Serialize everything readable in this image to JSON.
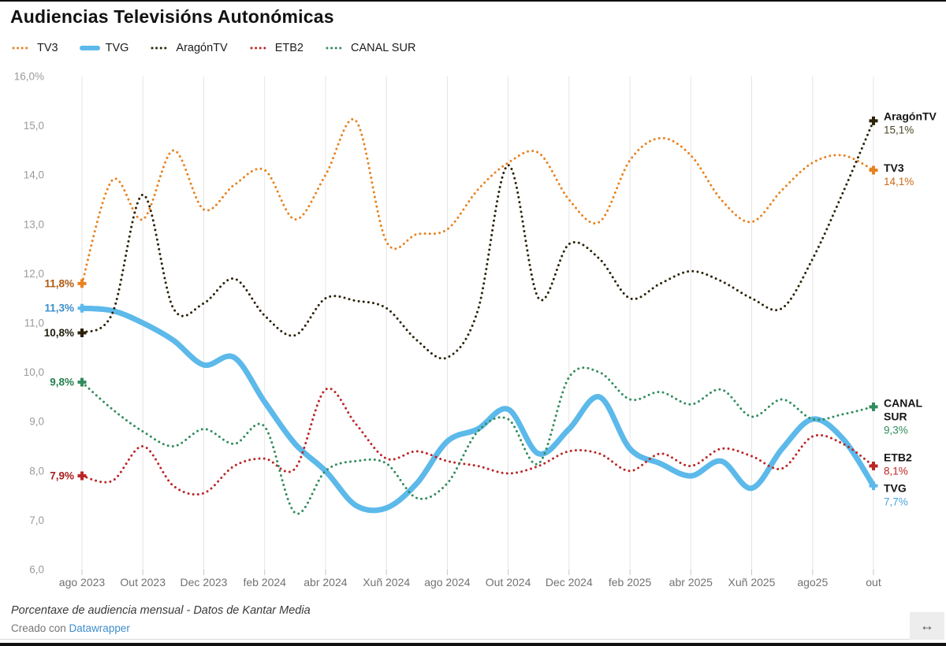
{
  "header": {
    "title": "Audiencias Televisións Autonómicas"
  },
  "chart_data": {
    "type": "line",
    "title": "Audiencias Televisións Autonómicas",
    "ylabel": "Porcentaxe de audiencia (%)",
    "y_min": 6,
    "y_max": 16,
    "grid": "vertical-only",
    "y_tick_labels": [
      "16,0%",
      "15,0",
      "14,0",
      "13,0",
      "12,0",
      "11,0",
      "10,0",
      "9,0",
      "8,0",
      "7,0",
      "6,0"
    ],
    "x_tick_labels": [
      "ago 2023",
      "Out 2023",
      "Dec 2023",
      "feb 2024",
      "abr 2024",
      "Xuñ 2024",
      "ago 2024",
      "Out 2024",
      "Dec 2024",
      "feb 2025",
      "abr 2025",
      "Xuñ 2025",
      "ago25",
      "out"
    ],
    "series": [
      {
        "name": "TV3",
        "style": "dotted",
        "color": "#e8821f",
        "start_label": "11,8%",
        "start_label_color": "#ad5a12",
        "end_label": "14,1%",
        "end_label_color": "#cf6a16",
        "end_name_lines": [
          "TV3"
        ],
        "values": [
          11.8,
          13.9,
          13.1,
          14.5,
          13.3,
          13.8,
          14.1,
          13.1,
          14.0,
          15.1,
          12.65,
          12.8,
          12.9,
          13.7,
          14.25,
          14.45,
          13.5,
          13.05,
          14.3,
          14.75,
          14.4,
          13.5,
          13.05,
          13.7,
          14.25,
          14.4,
          14.1
        ]
      },
      {
        "name": "TVG",
        "style": "solid",
        "color": "#5cb9ea",
        "start_label": "11,3%",
        "start_label_color": "#3a8fc9",
        "end_label": "7,7%",
        "end_label_color": "#49a5dc",
        "end_name_lines": [
          "TVG"
        ],
        "values": [
          11.3,
          11.25,
          11.0,
          10.65,
          10.15,
          10.3,
          9.4,
          8.55,
          8.0,
          7.3,
          7.25,
          7.75,
          8.6,
          8.85,
          9.25,
          8.35,
          8.85,
          9.5,
          8.45,
          8.15,
          7.9,
          8.2,
          7.65,
          8.45,
          9.05,
          8.65,
          7.7
        ]
      },
      {
        "name": "AragónTV",
        "style": "dotted",
        "color": "#2b2208",
        "start_label": "10,8%",
        "start_label_color": "#20200f",
        "end_label": "15,1%",
        "end_label_color": "#4d4527",
        "end_name_lines": [
          "AragónTV"
        ],
        "values": [
          10.8,
          11.2,
          13.6,
          11.3,
          11.4,
          11.9,
          11.15,
          10.75,
          11.5,
          11.45,
          11.3,
          10.65,
          10.3,
          11.25,
          14.2,
          11.5,
          12.6,
          12.3,
          11.5,
          11.8,
          12.05,
          11.85,
          11.5,
          11.3,
          12.3,
          13.65,
          15.1
        ]
      },
      {
        "name": "ETB2",
        "style": "dotted",
        "color": "#bb2626",
        "start_label": "7,9%",
        "start_label_color": "#ab1f1f",
        "end_label": "8,1%",
        "end_label_color": "#bb2626",
        "end_name_lines": [
          "ETB2"
        ],
        "values": [
          7.9,
          7.8,
          8.5,
          7.7,
          7.55,
          8.1,
          8.25,
          8.05,
          9.65,
          8.95,
          8.25,
          8.4,
          8.2,
          8.1,
          7.95,
          8.1,
          8.4,
          8.35,
          8.0,
          8.35,
          8.1,
          8.45,
          8.3,
          8.05,
          8.7,
          8.55,
          8.1
        ]
      },
      {
        "name": "CANAL SUR",
        "style": "dotted",
        "color": "#328c5c",
        "start_label": "9,8%",
        "start_label_color": "#258050",
        "end_label": "9,3%",
        "end_label_color": "#2e8d5a",
        "end_name_lines": [
          "CANAL",
          "SUR"
        ],
        "values": [
          9.8,
          9.25,
          8.8,
          8.5,
          8.85,
          8.55,
          8.9,
          7.15,
          8.0,
          8.2,
          8.15,
          7.45,
          7.75,
          8.8,
          9.05,
          8.15,
          9.9,
          10.0,
          9.45,
          9.6,
          9.35,
          9.65,
          9.1,
          9.45,
          9.05,
          9.15,
          9.3
        ]
      }
    ]
  },
  "footer": {
    "note": "Porcentaxe de audiencia mensual - Datos de Kantar Media",
    "credit_prefix": "Creado con ",
    "credit_link": "Datawrapper"
  },
  "resize_icon": "↔"
}
